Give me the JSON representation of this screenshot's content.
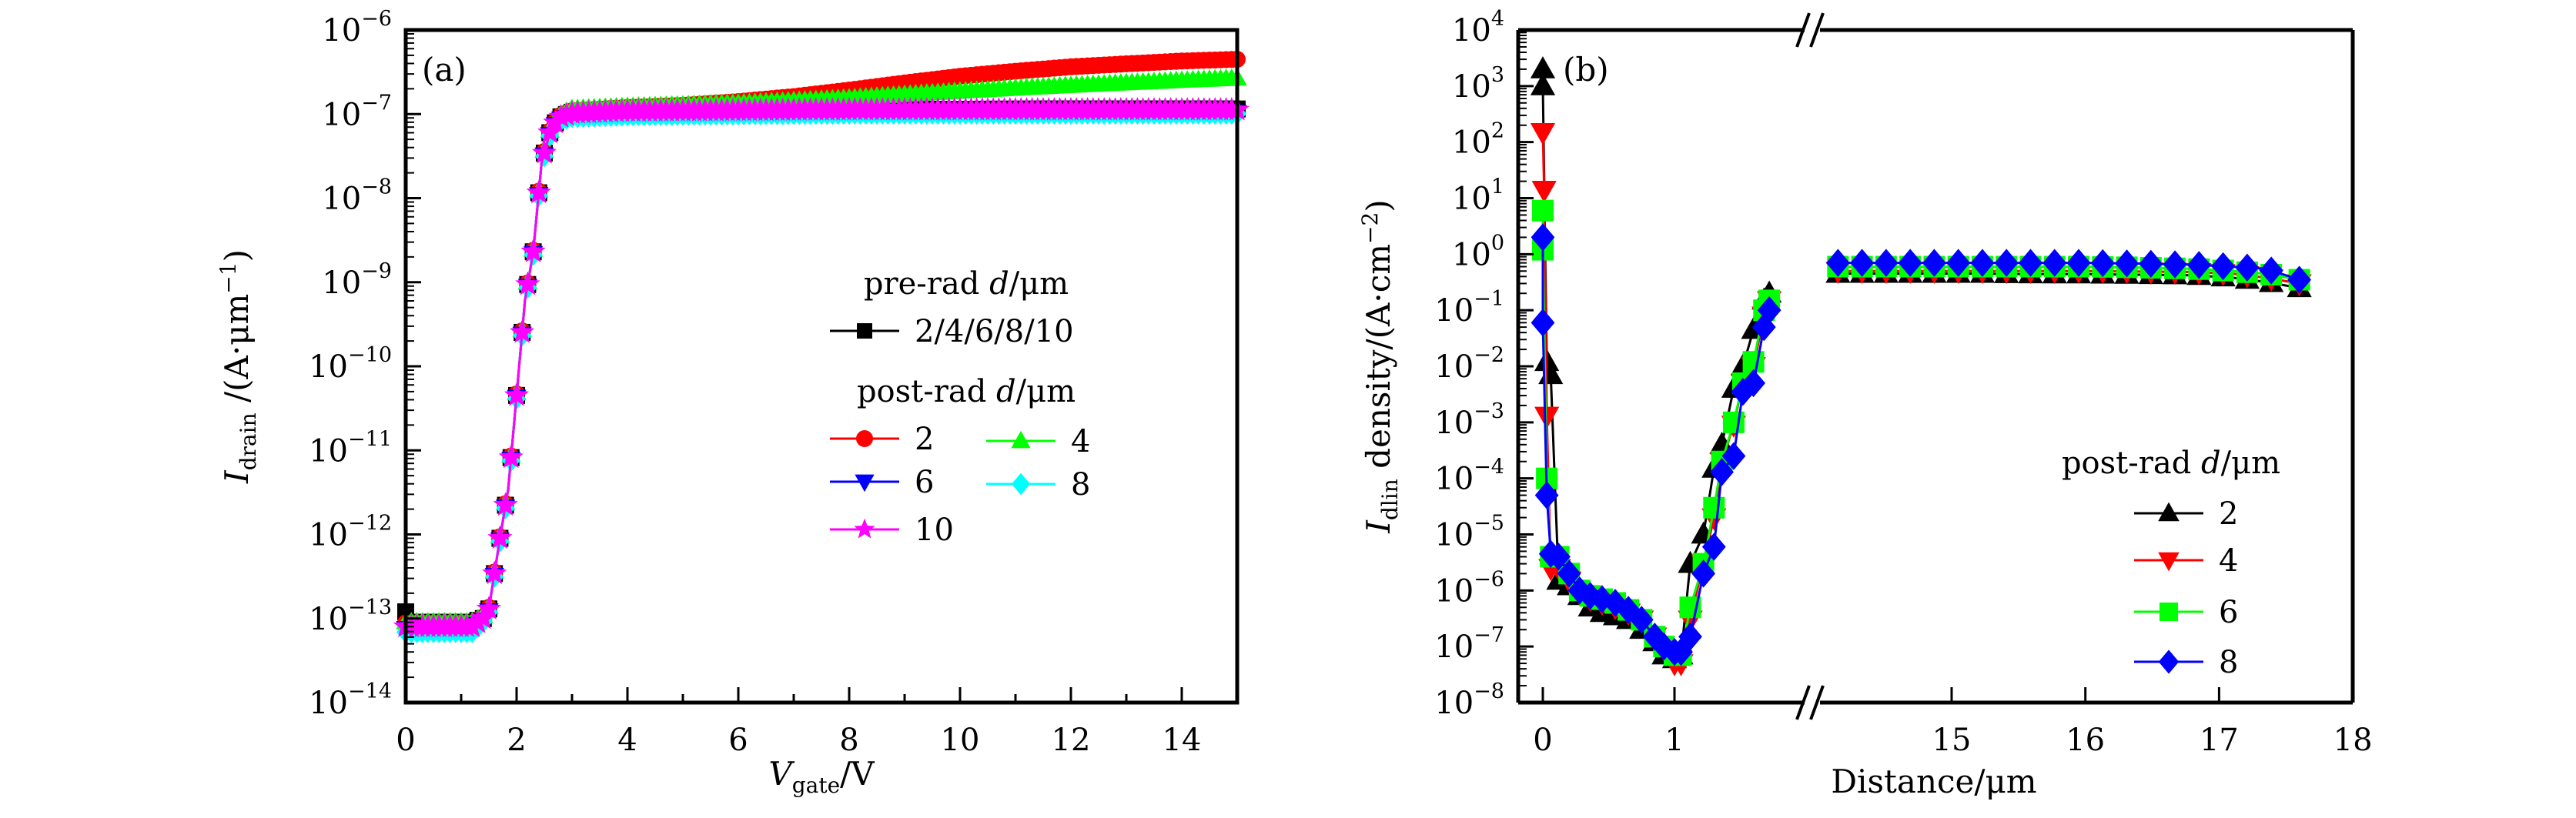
{
  "chart_data": [
    {
      "panel": "(a)",
      "type": "line",
      "title": "",
      "xlabel": {
        "main": "V",
        "sub": "gate",
        "unit": "/V"
      },
      "ylabel": {
        "main": "I",
        "sub": "drain",
        "unit": " /(A·μm",
        "sup": "−1",
        "close": ")"
      },
      "xscale": "linear",
      "yscale": "log",
      "xlim": [
        0,
        15
      ],
      "ylim": [
        1e-14,
        1e-06
      ],
      "xticks": [
        0,
        2,
        4,
        6,
        8,
        10,
        12,
        14
      ],
      "xtick_labels": [
        "0",
        "2",
        "4",
        "6",
        "8",
        "10",
        "12",
        "14"
      ],
      "yticks_exp": [
        -14,
        -13,
        -12,
        -11,
        -10,
        -9,
        -8,
        -7,
        -6
      ],
      "ytick_labels": [
        "10",
        "10",
        "10",
        "10",
        "10",
        "10",
        "10",
        "10",
        "10"
      ],
      "ytick_sups": [
        "−14",
        "−13",
        "−12",
        "−11",
        "−10",
        "−9",
        "−8",
        "−7",
        "−6"
      ],
      "grid": false,
      "legend": {
        "placement": "center-right",
        "groups": [
          {
            "title": "pre-rad d/μm",
            "title_pre": "pre-rad ",
            "title_var": "d",
            "title_post": "/μm",
            "entries": [
              {
                "label": "2/4/6/8/10",
                "series": "pre"
              }
            ]
          },
          {
            "title": "post-rad d/μm",
            "title_pre": "post-rad ",
            "title_var": "d",
            "title_post": "/μm",
            "entries": [
              {
                "label": "2",
                "series": "post2"
              },
              {
                "label": "4",
                "series": "post4"
              },
              {
                "label": "6",
                "series": "post6"
              },
              {
                "label": "8",
                "series": "post8"
              },
              {
                "label": "10",
                "series": "post10"
              }
            ]
          }
        ]
      },
      "series": [
        {
          "id": "pre",
          "name": "pre-rad 2/4/6/8/10",
          "color": "#000000",
          "marker": "square",
          "x": [
            0,
            0.1,
            1.2,
            1.4,
            1.5,
            1.7,
            1.85,
            2.0,
            2.15,
            2.3,
            2.45,
            2.6,
            2.75,
            3.0,
            4,
            6,
            8,
            10,
            12,
            14,
            15
          ],
          "y": [
            1.2e-13,
            9e-14,
            9e-14,
            1e-13,
            1.3e-13,
            9e-13,
            3.5e-12,
            4.5e-11,
            6e-10,
            2.3e-09,
            2.6e-08,
            6e-08,
            9e-08,
            1.05e-07,
            1.1e-07,
            1.12e-07,
            1.13e-07,
            1.14e-07,
            1.15e-07,
            1.15e-07,
            1.15e-07
          ]
        },
        {
          "id": "post2",
          "name": "post-rad 2",
          "color": "#ff0000",
          "marker": "circle",
          "x": [
            0,
            1.2,
            1.4,
            1.5,
            1.7,
            1.85,
            2.0,
            2.15,
            2.3,
            2.45,
            2.6,
            2.75,
            3.0,
            4,
            5,
            6,
            7,
            8,
            9,
            10,
            11,
            12,
            13,
            14,
            15
          ],
          "y": [
            8.5e-14,
            8.5e-14,
            1e-13,
            1.3e-13,
            9e-13,
            3.5e-12,
            4.5e-11,
            6e-10,
            2.3e-09,
            2.6e-08,
            6e-08,
            9e-08,
            1.05e-07,
            1.15e-07,
            1.22e-07,
            1.35e-07,
            1.55e-07,
            1.85e-07,
            2.25e-07,
            2.7e-07,
            3.1e-07,
            3.5e-07,
            3.8e-07,
            4.1e-07,
            4.3e-07
          ]
        },
        {
          "id": "post4",
          "name": "post-rad 4",
          "color": "#00ff00",
          "marker": "triangle-up",
          "x": [
            0,
            1.2,
            1.4,
            1.5,
            1.7,
            1.85,
            2.0,
            2.15,
            2.3,
            2.45,
            2.6,
            2.75,
            3.0,
            4,
            5,
            6,
            7,
            8,
            9,
            10,
            11,
            12,
            13,
            14,
            15
          ],
          "y": [
            8.5e-14,
            8.5e-14,
            1e-13,
            1.3e-13,
            9e-13,
            3.5e-12,
            4.5e-11,
            6e-10,
            2.3e-09,
            2.6e-08,
            6e-08,
            9e-08,
            1.08e-07,
            1.15e-07,
            1.2e-07,
            1.26e-07,
            1.35e-07,
            1.45e-07,
            1.6e-07,
            1.75e-07,
            1.9e-07,
            2.05e-07,
            2.2e-07,
            2.35e-07,
            2.5e-07
          ]
        },
        {
          "id": "post6",
          "name": "post-rad 6",
          "color": "#0000ff",
          "marker": "triangle-down",
          "x": [
            0,
            1.2,
            1.4,
            1.5,
            1.7,
            1.85,
            2.0,
            2.15,
            2.3,
            2.45,
            2.6,
            2.75,
            3.0,
            4,
            6,
            8,
            10,
            12,
            14,
            15
          ],
          "y": [
            8e-14,
            8e-14,
            1e-13,
            1.3e-13,
            9e-13,
            3.5e-12,
            4.5e-11,
            6e-10,
            2.3e-09,
            2.6e-08,
            6e-08,
            9e-08,
            1e-07,
            1.05e-07,
            1.08e-07,
            1.1e-07,
            1.1e-07,
            1.1e-07,
            1.1e-07,
            1.1e-07
          ]
        },
        {
          "id": "post8",
          "name": "post-rad 8",
          "color": "#00ffff",
          "marker": "diamond",
          "x": [
            0,
            1.2,
            1.4,
            1.5,
            1.7,
            1.85,
            2.0,
            2.15,
            2.3,
            2.45,
            2.6,
            2.75,
            3.0,
            4,
            6,
            8,
            10,
            12,
            14,
            15
          ],
          "y": [
            7.5e-14,
            7.5e-14,
            1e-13,
            1.3e-13,
            9e-13,
            3.5e-12,
            4.5e-11,
            6e-10,
            2.3e-09,
            2.6e-08,
            6e-08,
            9e-08,
            1e-07,
            1.05e-07,
            1.08e-07,
            1.1e-07,
            1.1e-07,
            1.1e-07,
            1.1e-07,
            1.1e-07
          ]
        },
        {
          "id": "post10",
          "name": "post-rad 10",
          "color": "#ff00ff",
          "marker": "star",
          "x": [
            0,
            1.2,
            1.4,
            1.5,
            1.7,
            1.85,
            2.0,
            2.15,
            2.3,
            2.45,
            2.6,
            2.75,
            3.0,
            4,
            6,
            8,
            10,
            12,
            14,
            15
          ],
          "y": [
            8e-14,
            8e-14,
            1e-13,
            1.3e-13,
            9e-13,
            3.5e-12,
            4.5e-11,
            6e-10,
            2.3e-09,
            2.6e-08,
            6e-08,
            9e-08,
            1.02e-07,
            1.08e-07,
            1.1e-07,
            1.12e-07,
            1.12e-07,
            1.12e-07,
            1.12e-07,
            1.12e-07
          ]
        }
      ]
    },
    {
      "panel": "(b)",
      "type": "line",
      "title": "",
      "xlabel": {
        "main": "Distance/μm"
      },
      "ylabel": {
        "main": "I",
        "sub": "dlin",
        "unit": " density/(A·cm",
        "sup": "−2",
        "close": ")"
      },
      "xscale": "broken-linear",
      "x_segments": [
        [
          -0.1,
          2.3
        ],
        [
          14.0,
          18.0
        ]
      ],
      "axis_break": true,
      "yscale": "log",
      "ylim": [
        1e-08,
        10000.0
      ],
      "xticks": [
        0,
        1,
        15,
        16,
        17,
        18
      ],
      "xtick_labels": [
        "0",
        "1",
        "15",
        "16",
        "17",
        "18"
      ],
      "yticks_exp": [
        -8,
        -7,
        -6,
        -5,
        -4,
        -3,
        -2,
        -1,
        0,
        1,
        2,
        3,
        4
      ],
      "ytick_labels": [
        "10",
        "10",
        "10",
        "10",
        "10",
        "10",
        "10",
        "10",
        "10",
        "10",
        "10",
        "10",
        "10"
      ],
      "ytick_sups": [
        "−8",
        "−7",
        "−6",
        "−5",
        "−4",
        "−3",
        "−2",
        "−1",
        "0",
        "1",
        "2",
        "3",
        "4"
      ],
      "grid": false,
      "legend": {
        "placement": "bottom-right",
        "groups": [
          {
            "title": "post-rad d/μm",
            "title_pre": "post-rad ",
            "title_var": "d",
            "title_post": "/μm",
            "entries": [
              {
                "label": "2",
                "series": "b2"
              },
              {
                "label": "4",
                "series": "b4"
              },
              {
                "label": "6",
                "series": "b6"
              },
              {
                "label": "8",
                "series": "b8"
              }
            ]
          }
        ]
      },
      "series": [
        {
          "id": "b2",
          "name": "post-rad 2",
          "color": "#000000",
          "marker": "triangle-up",
          "x": [
            0,
            0.0,
            0.03,
            0.06,
            0.12,
            0.2,
            0.28,
            0.36,
            0.45,
            0.55,
            0.65,
            0.75,
            0.85,
            0.92,
            1.0,
            1.05,
            1.12,
            1.22,
            1.3,
            1.36,
            1.45,
            1.52,
            1.6,
            1.68,
            1.72,
            14.15,
            14.4,
            14.8,
            15.2,
            15.6,
            16.0,
            16.4,
            16.8,
            17.1,
            17.35,
            17.6
          ],
          "y": [
            2000,
            1000,
            0.012,
            0.007,
            1.5e-06,
            1.2e-06,
            8e-07,
            5e-07,
            4e-07,
            3.5e-07,
            3e-07,
            2e-07,
            1.2e-07,
            7e-08,
            6e-08,
            7e-08,
            3e-06,
            1e-05,
            0.00015,
            0.0004,
            0.004,
            0.01,
            0.045,
            0.15,
            0.2,
            0.45,
            0.45,
            0.45,
            0.45,
            0.44,
            0.44,
            0.43,
            0.42,
            0.38,
            0.32,
            0.25
          ]
        },
        {
          "id": "b4",
          "name": "post-rad 4",
          "color": "#ff0000",
          "marker": "triangle-down",
          "x": [
            0,
            0.01,
            0.03,
            0.06,
            0.12,
            0.2,
            0.28,
            0.36,
            0.45,
            0.55,
            0.65,
            0.75,
            0.85,
            0.92,
            1.0,
            1.05,
            1.12,
            1.22,
            1.3,
            1.36,
            1.45,
            1.52,
            1.6,
            1.68,
            1.72,
            14.15,
            14.4,
            14.8,
            15.2,
            15.6,
            16.0,
            16.4,
            16.8,
            17.1,
            17.35,
            17.6
          ],
          "y": [
            150,
            14,
            0.0013,
            2.5e-06,
            2.5e-06,
            1.5e-06,
            9e-07,
            7e-07,
            6e-07,
            5e-07,
            4e-07,
            3e-07,
            1.5e-07,
            9e-08,
            5e-08,
            5e-08,
            3e-07,
            3e-06,
            2e-05,
            0.0002,
            0.0009,
            0.005,
            0.01,
            0.08,
            0.15,
            0.5,
            0.5,
            0.5,
            0.5,
            0.5,
            0.5,
            0.49,
            0.48,
            0.45,
            0.38,
            0.3
          ]
        },
        {
          "id": "b6",
          "name": "post-rad 6",
          "color": "#00ff00",
          "marker": "square",
          "x": [
            0,
            0.0,
            0.03,
            0.06,
            0.12,
            0.2,
            0.28,
            0.36,
            0.45,
            0.55,
            0.65,
            0.75,
            0.85,
            0.92,
            1.0,
            1.05,
            1.12,
            1.22,
            1.3,
            1.36,
            1.45,
            1.52,
            1.6,
            1.68,
            1.72,
            14.15,
            14.4,
            14.8,
            15.2,
            15.6,
            16.0,
            16.4,
            16.8,
            17.1,
            17.35,
            17.6
          ],
          "y": [
            6,
            1.2,
            0.0001,
            4e-06,
            4e-06,
            2e-06,
            1e-06,
            8e-07,
            7e-07,
            6e-07,
            4.5e-07,
            3e-07,
            1.5e-07,
            1e-07,
            7e-08,
            7e-08,
            5e-07,
            3e-06,
            3e-05,
            0.0002,
            0.001,
            0.005,
            0.012,
            0.1,
            0.15,
            0.6,
            0.6,
            0.6,
            0.6,
            0.6,
            0.6,
            0.58,
            0.55,
            0.5,
            0.45,
            0.35
          ]
        },
        {
          "id": "b8",
          "name": "post-rad 8",
          "color": "#0000ff",
          "marker": "diamond",
          "x": [
            0,
            0.0,
            0.03,
            0.06,
            0.12,
            0.2,
            0.28,
            0.36,
            0.45,
            0.55,
            0.65,
            0.75,
            0.85,
            0.92,
            1.0,
            1.05,
            1.12,
            1.22,
            1.3,
            1.36,
            1.45,
            1.52,
            1.6,
            1.68,
            1.72,
            14.15,
            14.4,
            14.8,
            15.2,
            15.6,
            16.0,
            16.4,
            16.8,
            17.1,
            17.35,
            17.6
          ],
          "y": [
            2,
            0.06,
            5e-05,
            4.5e-06,
            4e-06,
            2e-06,
            1e-06,
            8e-07,
            7e-07,
            6e-07,
            4.5e-07,
            3e-07,
            1.5e-07,
            1e-07,
            8e-08,
            8e-08,
            1.5e-07,
            2e-06,
            6e-06,
            0.00013,
            0.00025,
            0.0035,
            0.005,
            0.05,
            0.1,
            0.7,
            0.7,
            0.7,
            0.7,
            0.7,
            0.7,
            0.68,
            0.65,
            0.6,
            0.55,
            0.35
          ]
        }
      ]
    }
  ]
}
